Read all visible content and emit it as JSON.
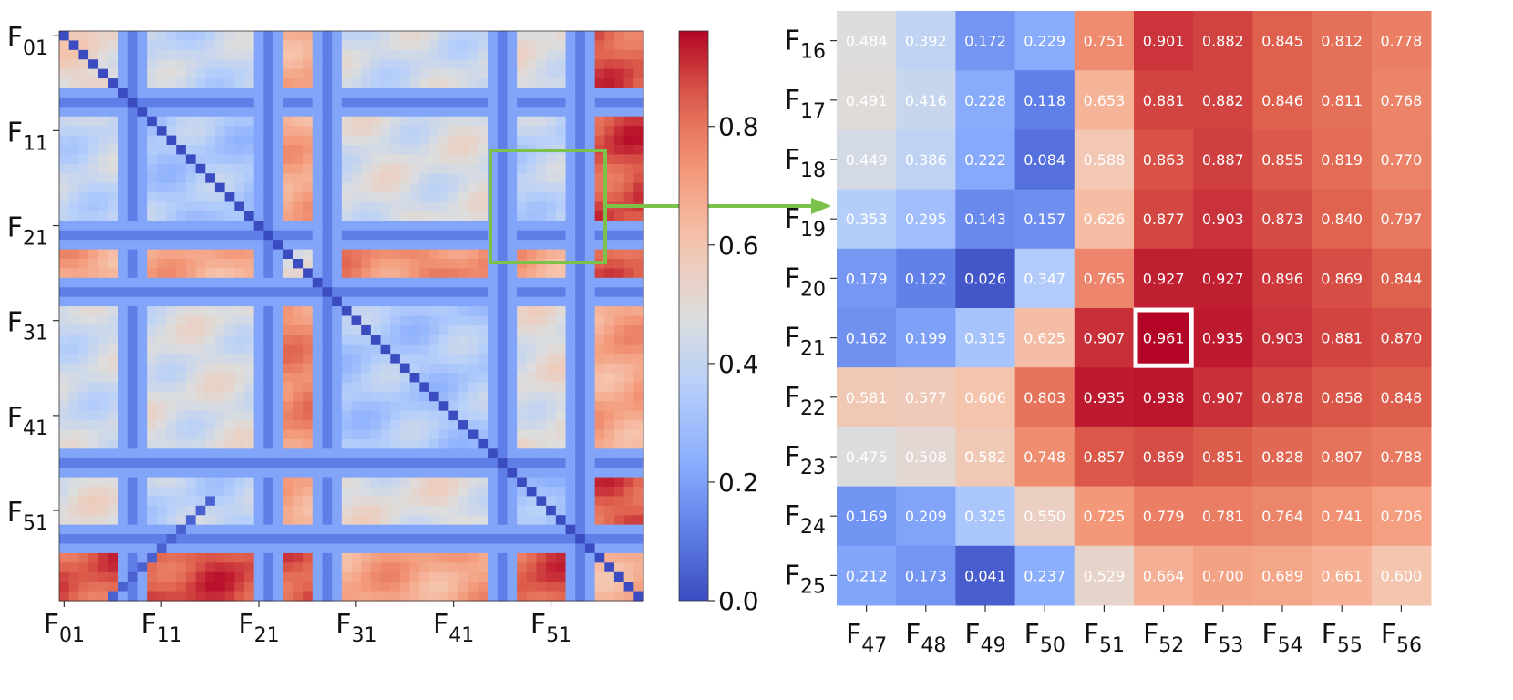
{
  "chart_data": [
    {
      "type": "heatmap",
      "title": "",
      "description_id": "full-similarity-matrix",
      "xtick_labels": [
        {
          "base": "F",
          "sub": "01"
        },
        {
          "base": "F",
          "sub": "11"
        },
        {
          "base": "F",
          "sub": "21"
        },
        {
          "base": "F",
          "sub": "31"
        },
        {
          "base": "F",
          "sub": "41"
        },
        {
          "base": "F",
          "sub": "51"
        }
      ],
      "ytick_labels": [
        {
          "base": "F",
          "sub": "01"
        },
        {
          "base": "F",
          "sub": "11"
        },
        {
          "base": "F",
          "sub": "21"
        },
        {
          "base": "F",
          "sub": "31"
        },
        {
          "base": "F",
          "sub": "41"
        },
        {
          "base": "F",
          "sub": "51"
        }
      ],
      "n_frames": 60,
      "highlight_region": {
        "rows": [
          16,
          25
        ],
        "cols": [
          47,
          56
        ]
      }
    },
    {
      "type": "heatmap",
      "title": "",
      "description_id": "zoomed-similarity-matrix",
      "rows": [
        {
          "base": "F",
          "sub": "16"
        },
        {
          "base": "F",
          "sub": "17"
        },
        {
          "base": "F",
          "sub": "18"
        },
        {
          "base": "F",
          "sub": "19"
        },
        {
          "base": "F",
          "sub": "20"
        },
        {
          "base": "F",
          "sub": "21"
        },
        {
          "base": "F",
          "sub": "22"
        },
        {
          "base": "F",
          "sub": "23"
        },
        {
          "base": "F",
          "sub": "24"
        },
        {
          "base": "F",
          "sub": "25"
        }
      ],
      "cols": [
        {
          "base": "F",
          "sub": "47"
        },
        {
          "base": "F",
          "sub": "48"
        },
        {
          "base": "F",
          "sub": "49"
        },
        {
          "base": "F",
          "sub": "50"
        },
        {
          "base": "F",
          "sub": "51"
        },
        {
          "base": "F",
          "sub": "52"
        },
        {
          "base": "F",
          "sub": "53"
        },
        {
          "base": "F",
          "sub": "54"
        },
        {
          "base": "F",
          "sub": "55"
        },
        {
          "base": "F",
          "sub": "56"
        }
      ],
      "values": [
        [
          "0.484",
          "0.392",
          "0.172",
          "0.229",
          "0.751",
          "0.901",
          "0.882",
          "0.845",
          "0.812",
          "0.778"
        ],
        [
          "0.491",
          "0.416",
          "0.228",
          "0.118",
          "0.653",
          "0.881",
          "0.882",
          "0.846",
          "0.811",
          "0.768"
        ],
        [
          "0.449",
          "0.386",
          "0.222",
          "0.084",
          "0.588",
          "0.863",
          "0.887",
          "0.855",
          "0.819",
          "0.770"
        ],
        [
          "0.353",
          "0.295",
          "0.143",
          "0.157",
          "0.626",
          "0.877",
          "0.903",
          "0.873",
          "0.840",
          "0.797"
        ],
        [
          "0.179",
          "0.122",
          "0.026",
          "0.347",
          "0.765",
          "0.927",
          "0.927",
          "0.896",
          "0.869",
          "0.844"
        ],
        [
          "0.162",
          "0.199",
          "0.315",
          "0.625",
          "0.907",
          "0.961",
          "0.935",
          "0.903",
          "0.881",
          "0.870"
        ],
        [
          "0.581",
          "0.577",
          "0.606",
          "0.803",
          "0.935",
          "0.938",
          "0.907",
          "0.878",
          "0.858",
          "0.848"
        ],
        [
          "0.475",
          "0.508",
          "0.582",
          "0.748",
          "0.857",
          "0.869",
          "0.851",
          "0.828",
          "0.807",
          "0.788"
        ],
        [
          "0.169",
          "0.209",
          "0.325",
          "0.550",
          "0.725",
          "0.779",
          "0.781",
          "0.764",
          "0.741",
          "0.706"
        ],
        [
          "0.212",
          "0.173",
          "0.041",
          "0.237",
          "0.529",
          "0.664",
          "0.700",
          "0.689",
          "0.661",
          "0.600"
        ]
      ],
      "highlight_cell": {
        "row": "F21",
        "col": "F52",
        "value": 0.961
      }
    }
  ],
  "colorbar": {
    "min": 0.0,
    "max": 0.961,
    "ticks": [
      "0.0",
      "0.2",
      "0.4",
      "0.6",
      "0.8"
    ],
    "colormap": "coolwarm"
  },
  "colors": {
    "highlight_box": "#7cc24a",
    "arrow": "#7cc24a",
    "selected_cell_border": "#ffffff"
  }
}
